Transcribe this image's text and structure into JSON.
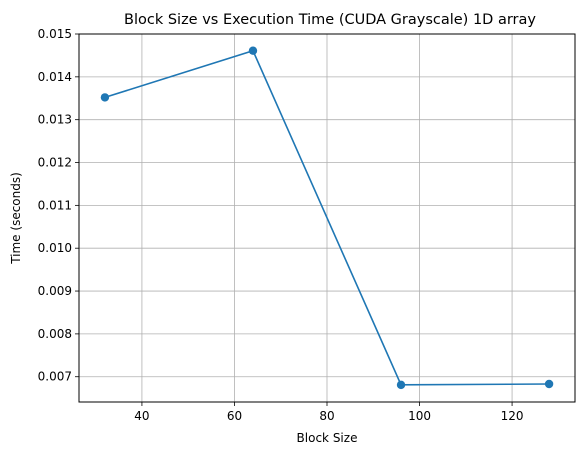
{
  "chart_data": {
    "type": "line",
    "title": "Block Size vs Execution Time (CUDA Grayscale) 1D array",
    "xlabel": "Block Size",
    "ylabel": "Time (seconds)",
    "xlim": [
      26.4,
      133.6
    ],
    "ylim": [
      0.00641,
      0.015
    ],
    "xticks": [
      40,
      60,
      80,
      100,
      120
    ],
    "xtick_labels": [
      "40",
      "60",
      "80",
      "100",
      "120"
    ],
    "yticks": [
      0.007,
      0.008,
      0.009,
      0.01,
      0.011,
      0.012,
      0.013,
      0.014,
      0.015
    ],
    "ytick_labels": [
      "0.007",
      "0.008",
      "0.009",
      "0.010",
      "0.011",
      "0.012",
      "0.013",
      "0.014",
      "0.015"
    ],
    "grid": true,
    "series": [
      {
        "color": "#1f77b4",
        "marker": "circle",
        "x": [
          32,
          64,
          96,
          128
        ],
        "y": [
          0.01352,
          0.01461,
          0.00681,
          0.00683
        ]
      }
    ]
  }
}
